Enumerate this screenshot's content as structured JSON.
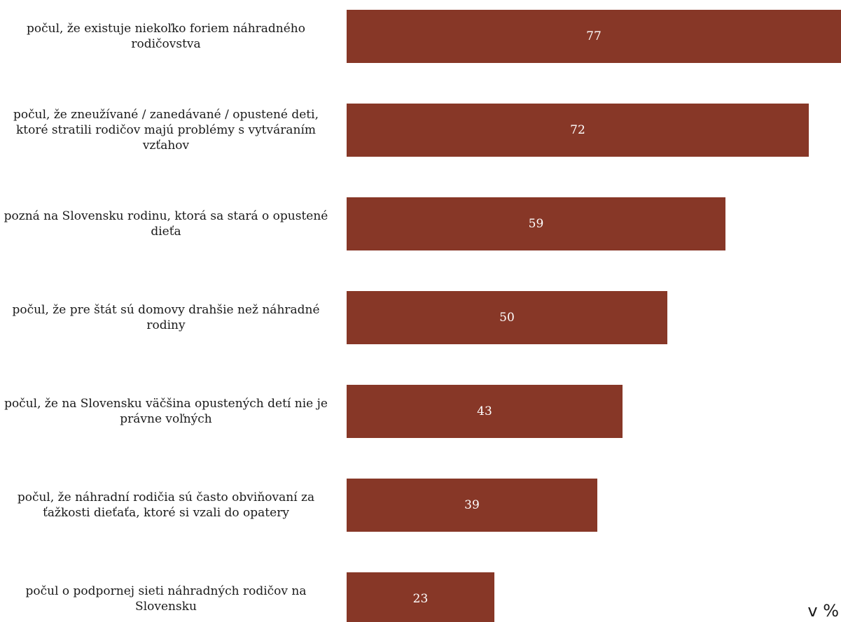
{
  "chart_data": {
    "type": "bar",
    "orientation": "horizontal",
    "categories": [
      "počul, že existuje niekoľko foriem náhradného rodičovstva",
      "počul, že zneužívané / zanedávané / opustené deti, ktoré stratili rodičov majú problémy s vytváraním vzťahov",
      "pozná na Slovensku rodinu, ktorá sa stará o opustené dieťa",
      "počul, že pre štát sú domovy drahšie než náhradné rodiny",
      "počul, že na Slovensku väčšina opustených detí nie je právne voľných",
      "počul, že náhradní rodičia sú často obviňovaní za ťažkosti dieťaťa, ktoré si vzali do opatery",
      "počul o podpornej sieti náhradných rodičov na Slovensku"
    ],
    "values": [
      77,
      72,
      59,
      50,
      43,
      39,
      23
    ],
    "unit_label": "v %",
    "xlim": [
      0,
      77
    ],
    "grid": false,
    "legend": "none",
    "bar_color": "#873727",
    "value_label_color": "#ffffff"
  }
}
